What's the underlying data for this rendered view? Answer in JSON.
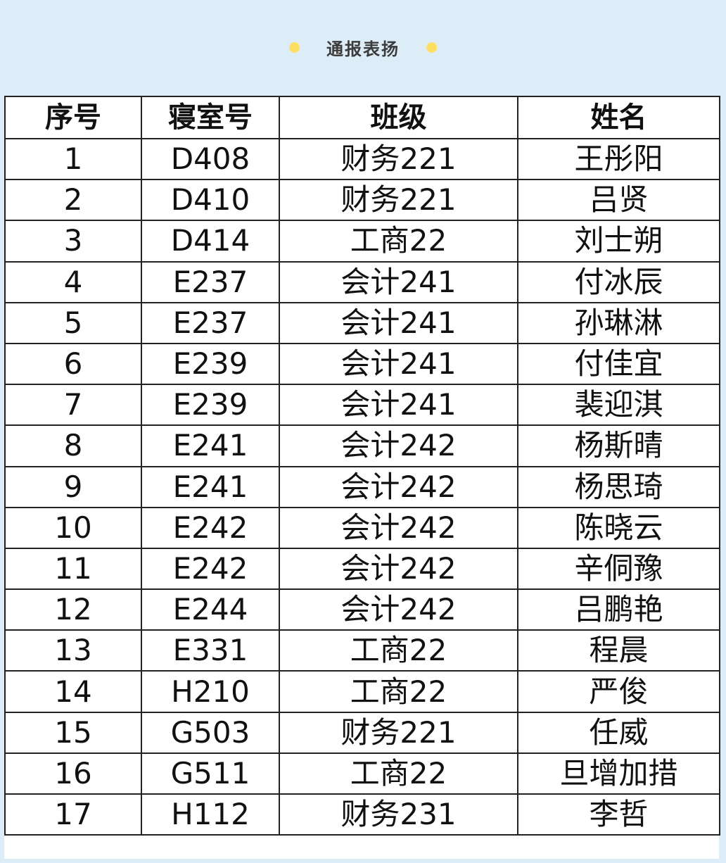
{
  "banner": {
    "title": "通报表扬",
    "accent_color": "#ffdf62",
    "background": "#dcedf8"
  },
  "table": {
    "headers": [
      "序号",
      "寝室号",
      "班级",
      "姓名"
    ],
    "rows": [
      [
        "1",
        "D408",
        "财务221",
        "王彤阳"
      ],
      [
        "2",
        "D410",
        "财务221",
        "吕贤"
      ],
      [
        "3",
        "D414",
        "工商22",
        "刘士朔"
      ],
      [
        "4",
        "E237",
        "会计241",
        "付冰辰"
      ],
      [
        "5",
        "E237",
        "会计241",
        "孙琳淋"
      ],
      [
        "6",
        "E239",
        "会计241",
        "付佳宜"
      ],
      [
        "7",
        "E239",
        "会计241",
        "裴迎淇"
      ],
      [
        "8",
        "E241",
        "会计242",
        "杨斯晴"
      ],
      [
        "9",
        "E241",
        "会计242",
        "杨思琦"
      ],
      [
        "10",
        "E242",
        "会计242",
        "陈晓云"
      ],
      [
        "11",
        "E242",
        "会计242",
        "辛侗豫"
      ],
      [
        "12",
        "E244",
        "会计242",
        "吕鹏艳"
      ],
      [
        "13",
        "E331",
        "工商22",
        "程晨"
      ],
      [
        "14",
        "H210",
        "工商22",
        "严俊"
      ],
      [
        "15",
        "G503",
        "财务221",
        "任威"
      ],
      [
        "16",
        "G511",
        "工商22",
        "旦增加措"
      ],
      [
        "17",
        "H112",
        "财务231",
        "李哲"
      ]
    ]
  }
}
